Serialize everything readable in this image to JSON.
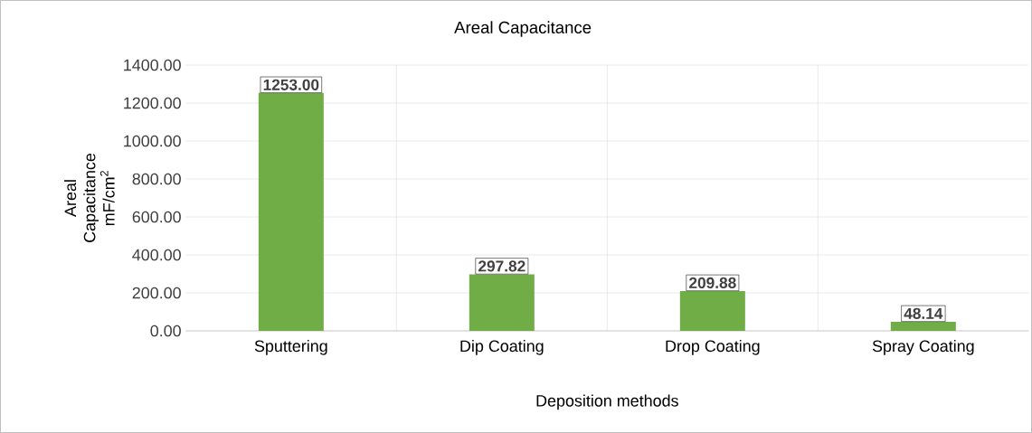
{
  "chart_data": {
    "type": "bar",
    "title": "Areal Capacitance",
    "xlabel": "Deposition methods",
    "ylabel": "Areal Capacitance mF/cm$^{2}$",
    "categories": [
      "Sputtering",
      "Dip Coating",
      "Drop Coating",
      "Spray Coating"
    ],
    "values": [
      1253.0,
      297.82,
      209.88,
      48.14
    ],
    "color": "#70ad47",
    "ylim": [
      0,
      1400
    ],
    "yticks": [
      {
        "value": 0,
        "label": "0.00"
      },
      {
        "value": 200,
        "label": "200.00"
      },
      {
        "value": 400,
        "label": "400.00"
      },
      {
        "value": 600,
        "label": "600.00"
      },
      {
        "value": 800,
        "label": "800.00"
      },
      {
        "value": 1000,
        "label": "1000.00"
      },
      {
        "value": 1200,
        "label": "1200.00"
      },
      {
        "value": 1400,
        "label": "1400.00"
      }
    ],
    "value_labels": [
      "1253.00",
      "297.82",
      "209.88",
      "48.14"
    ],
    "grid": true
  }
}
